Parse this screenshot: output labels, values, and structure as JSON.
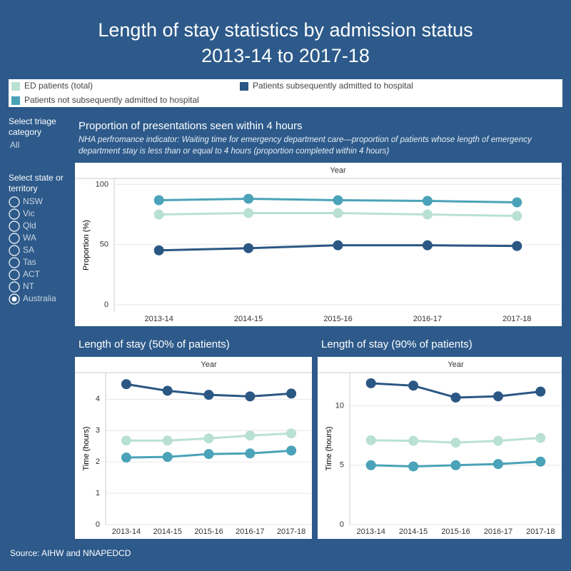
{
  "title": "Length of stay statistics by admission status",
  "subtitle": "2013-14 to 2017-18",
  "sidebar": {
    "triage_label": "Select triage category",
    "triage_value": "All",
    "state_label": "Select state or territory",
    "states": [
      "NSW",
      "Vic",
      "Qld",
      "WA",
      "SA",
      "Tas",
      "ACT",
      "NT",
      "Australia"
    ],
    "selected": "Australia"
  },
  "source": "Source: AIHW and NNAPEDCD",
  "chart_data": [
    {
      "type": "line",
      "title": "Proportion of presentations seen within 4 hours",
      "subtitle": "NHA perfromance indicator: Waiting time for emergency department care—proportion of patients whose length of emergency department stay is less than or equal to 4 hours (proportion completed within 4 hours)",
      "x_header": "Year",
      "ylabel": "Proportion (%)",
      "categories": [
        "2013-14",
        "2014-15",
        "2015-16",
        "2016-17",
        "2017-18"
      ],
      "ylim": [
        -6,
        105
      ],
      "yticks": [
        0,
        50,
        100
      ],
      "grid": true,
      "series": [
        {
          "name": "ED patients (total)",
          "color": "#b9e1d3",
          "values": [
            75,
            76.2,
            76.2,
            75,
            73.8
          ]
        },
        {
          "name": "Patients not subsequently admitted to hospital",
          "color": "#4aa3b8",
          "values": [
            86.9,
            88.1,
            86.9,
            86.3,
            85.1
          ]
        },
        {
          "name": "Patients subsequently admitted to hospital",
          "color": "#2b5784",
          "values": [
            45.2,
            47,
            49.4,
            49.4,
            48.8
          ]
        }
      ]
    },
    {
      "type": "line",
      "title": "Length of stay (50% of patients)",
      "x_header": "Year",
      "ylabel": "Time (hours)",
      "categories": [
        "2013-14",
        "2014-15",
        "2015-16",
        "2016-17",
        "2017-18"
      ],
      "ylim": [
        0,
        4.85
      ],
      "yticks": [
        0,
        1,
        2,
        3,
        4
      ],
      "grid": true,
      "series": [
        {
          "name": "ED patients (total)",
          "color": "#b9e1d3",
          "values": [
            2.68,
            2.68,
            2.75,
            2.84,
            2.91
          ]
        },
        {
          "name": "Patients not subsequently admitted to hospital",
          "color": "#4aa3b8",
          "values": [
            2.14,
            2.16,
            2.25,
            2.27,
            2.36
          ]
        },
        {
          "name": "Patients subsequently admitted to hospital",
          "color": "#2b5784",
          "values": [
            4.48,
            4.27,
            4.14,
            4.09,
            4.18
          ]
        }
      ]
    },
    {
      "type": "line",
      "title": "Length of stay (90% of patients)",
      "x_header": "Year",
      "ylabel": "Time (hours)",
      "categories": [
        "2013-14",
        "2014-15",
        "2015-16",
        "2016-17",
        "2017-18"
      ],
      "ylim": [
        0,
        12.8
      ],
      "yticks": [
        0,
        5,
        10
      ],
      "grid": true,
      "series": [
        {
          "name": "ED patients (total)",
          "color": "#b9e1d3",
          "values": [
            7.1,
            7.05,
            6.9,
            7.05,
            7.3
          ]
        },
        {
          "name": "Patients not subsequently admitted to hospital",
          "color": "#4aa3b8",
          "values": [
            5.0,
            4.9,
            5.0,
            5.1,
            5.3
          ]
        },
        {
          "name": "Patients subsequently admitted to hospital",
          "color": "#2b5784",
          "values": [
            11.9,
            11.7,
            10.7,
            10.8,
            11.2
          ]
        }
      ]
    }
  ]
}
